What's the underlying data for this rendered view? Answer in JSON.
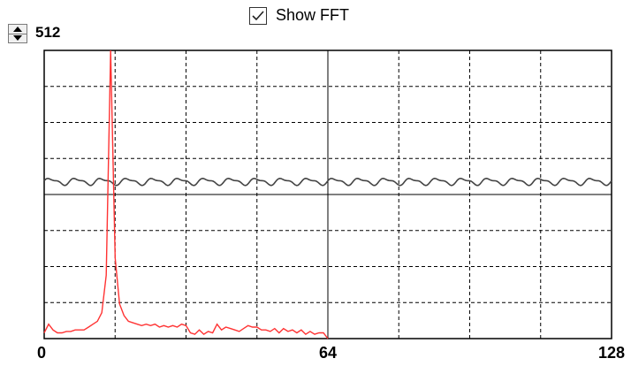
{
  "controls": {
    "show_fft_checked": true,
    "show_fft_label": "Show FFT",
    "sample_count": "512"
  },
  "chart_data": {
    "type": "line",
    "xlabel": "",
    "ylabel": "",
    "xlim": [
      0,
      128
    ],
    "ylim": [
      0,
      1
    ],
    "grid": true,
    "x_ticks": [
      "0",
      "64",
      "128"
    ],
    "colors": {
      "fft": "#ff3333",
      "signal": "#444444",
      "grid": "#000000"
    },
    "series": [
      {
        "key": "fft",
        "points": [
          [
            0,
            0.02
          ],
          [
            1,
            0.05
          ],
          [
            2,
            0.03
          ],
          [
            3,
            0.02
          ],
          [
            4,
            0.02
          ],
          [
            5,
            0.025
          ],
          [
            6,
            0.025
          ],
          [
            7,
            0.03
          ],
          [
            8,
            0.03
          ],
          [
            9,
            0.03
          ],
          [
            10,
            0.04
          ],
          [
            11,
            0.05
          ],
          [
            12,
            0.06
          ],
          [
            13,
            0.09
          ],
          [
            14,
            0.22
          ],
          [
            15,
            1.0
          ],
          [
            16,
            0.28
          ],
          [
            17,
            0.12
          ],
          [
            18,
            0.08
          ],
          [
            19,
            0.06
          ],
          [
            20,
            0.055
          ],
          [
            21,
            0.05
          ],
          [
            22,
            0.045
          ],
          [
            23,
            0.05
          ],
          [
            24,
            0.045
          ],
          [
            25,
            0.05
          ],
          [
            26,
            0.04
          ],
          [
            27,
            0.045
          ],
          [
            28,
            0.04
          ],
          [
            29,
            0.045
          ],
          [
            30,
            0.04
          ],
          [
            31,
            0.05
          ],
          [
            32,
            0.045
          ],
          [
            33,
            0.02
          ],
          [
            34,
            0.015
          ],
          [
            35,
            0.03
          ],
          [
            36,
            0.015
          ],
          [
            37,
            0.025
          ],
          [
            38,
            0.02
          ],
          [
            39,
            0.05
          ],
          [
            40,
            0.03
          ],
          [
            41,
            0.04
          ],
          [
            42,
            0.035
          ],
          [
            43,
            0.03
          ],
          [
            44,
            0.025
          ],
          [
            45,
            0.035
          ],
          [
            46,
            0.045
          ],
          [
            47,
            0.04
          ],
          [
            48,
            0.04
          ],
          [
            49,
            0.03
          ],
          [
            50,
            0.03
          ],
          [
            51,
            0.025
          ],
          [
            52,
            0.035
          ],
          [
            53,
            0.02
          ],
          [
            54,
            0.035
          ],
          [
            55,
            0.025
          ],
          [
            56,
            0.03
          ],
          [
            57,
            0.02
          ],
          [
            58,
            0.03
          ],
          [
            59,
            0.015
          ],
          [
            60,
            0.025
          ],
          [
            61,
            0.015
          ],
          [
            62,
            0.02
          ],
          [
            63,
            0.02
          ],
          [
            64,
            0.0
          ]
        ]
      },
      {
        "key": "signal",
        "baseline": 0.545,
        "amplitude": 0.01,
        "cycles": 22
      }
    ]
  }
}
